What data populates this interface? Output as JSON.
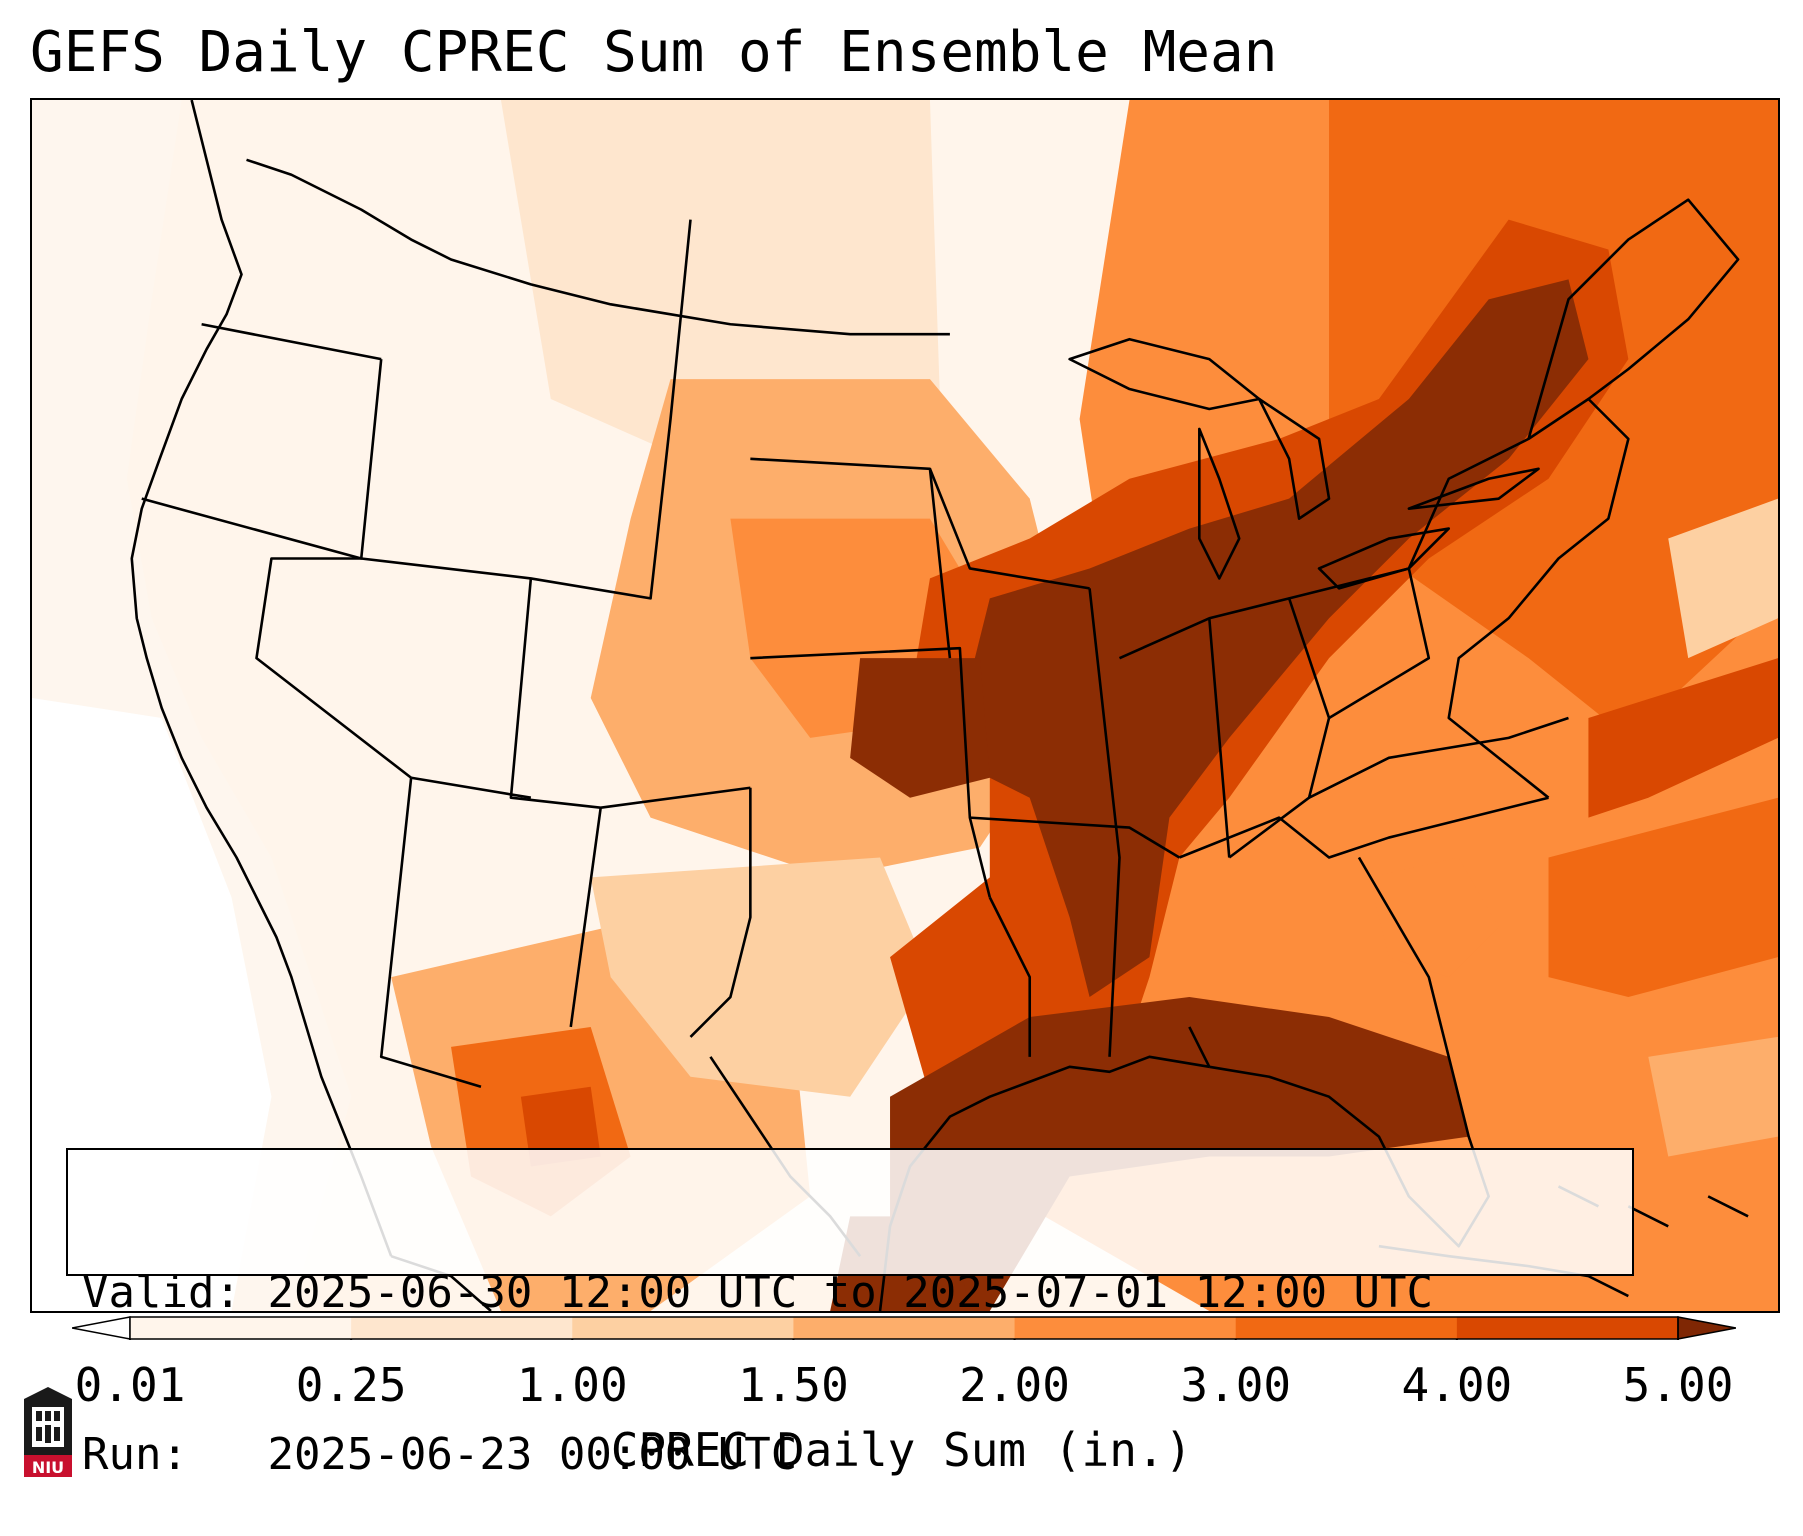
{
  "title": "GEFS Daily CPREC Sum of Ensemble Mean",
  "info": {
    "valid_label": "Valid:",
    "valid_value": "2025-06-30 12:00 UTC to 2025-07-01 12:00 UTC",
    "run_label": "Run:",
    "run_value": "2025-06-23 00:00 UTC"
  },
  "colorbar": {
    "label": "CPREC Daily Sum (in.)",
    "ticks": [
      "0.01",
      "0.25",
      "1.00",
      "1.50",
      "2.00",
      "3.00",
      "4.00",
      "5.00"
    ],
    "colors": [
      "#fff5eb",
      "#fee6ce",
      "#fdd0a2",
      "#fdae6b",
      "#fd8d3c",
      "#f16913",
      "#d94801",
      "#8c2d04"
    ],
    "extend": "both",
    "under_color": "#ffffff",
    "over_color": "#7f2704"
  },
  "map": {
    "projection": "Lambert Conformal Conic over CONUS",
    "field": "CPREC daily sum",
    "heavy_regions": [
      "Mid-Mississippi Valley",
      "Ohio Valley",
      "Tennessee Valley",
      "Northeast US",
      "Gulf of Mexico",
      "Southeast US"
    ],
    "dry_regions": [
      "Pacific Northwest",
      "Great Basin",
      "California",
      "Northern Rockies"
    ]
  },
  "logo": {
    "text": "NIU",
    "color": "#c8102e"
  }
}
